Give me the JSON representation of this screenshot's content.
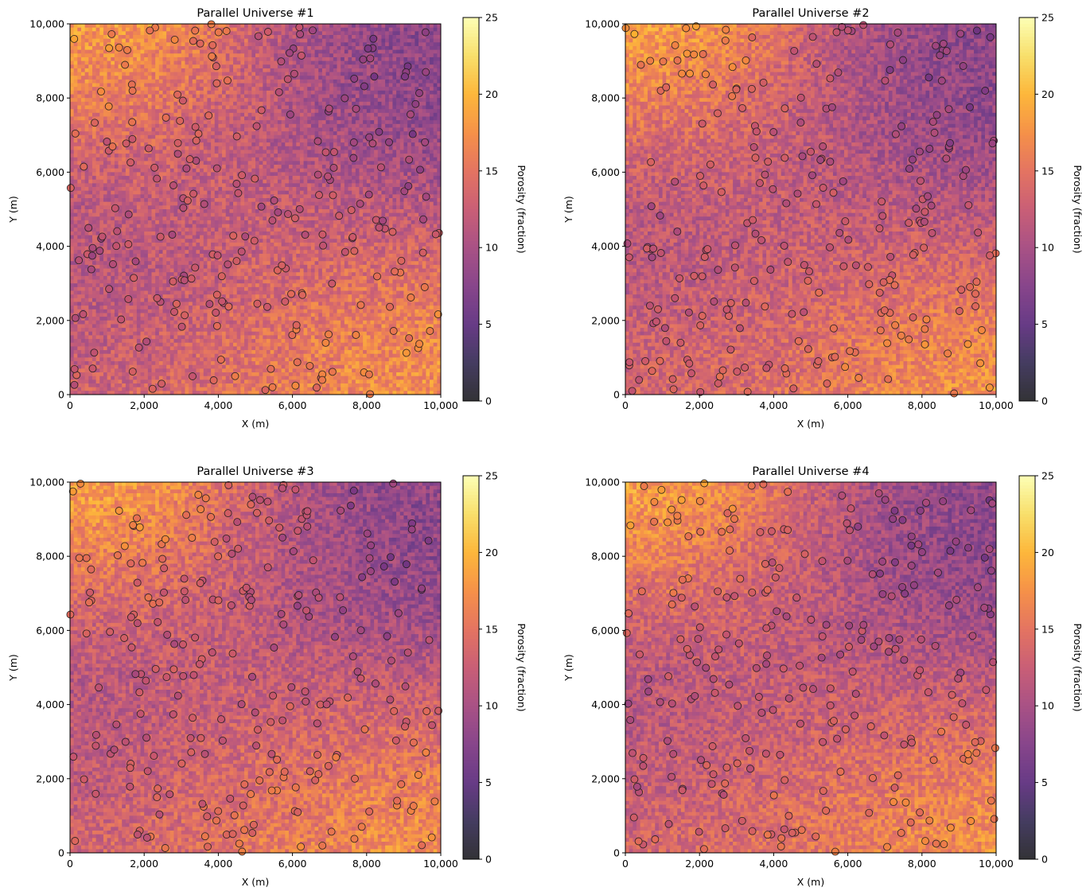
{
  "colorbar": {
    "label": "Porosity (fraction)",
    "min": 0,
    "max": 25,
    "ticks": [
      0,
      5,
      10,
      15,
      20,
      25
    ],
    "colormap": "inferno",
    "alpha": 0.8
  },
  "axes": {
    "xlabel": "X (m)",
    "ylabel": "Y (m)",
    "xlim": [
      0,
      10000
    ],
    "ylim": [
      0,
      10000
    ],
    "xticks": [
      "0",
      "2,000",
      "4,000",
      "6,000",
      "8,000",
      "10,000"
    ],
    "yticks": [
      "0",
      "2,000",
      "4,000",
      "6,000",
      "8,000",
      "10,000"
    ]
  },
  "chart_data": [
    {
      "type": "heatmap",
      "title": "Parallel Universe #1",
      "grid_cells": 100,
      "wells_shown": 260,
      "marker_colormap": "inferno",
      "high_zones": [
        [
          2000,
          9000,
          22
        ],
        [
          8500,
          1000,
          20
        ],
        [
          5500,
          500,
          16
        ],
        [
          7500,
          3000,
          16
        ],
        [
          1000,
          2000,
          16
        ]
      ],
      "low_zones": [
        [
          9000,
          7000,
          5
        ],
        [
          1000,
          3500,
          5
        ],
        [
          8000,
          8500,
          7
        ],
        [
          5000,
          5000,
          10
        ],
        [
          4000,
          6000,
          12
        ]
      ]
    },
    {
      "type": "heatmap",
      "title": "Parallel Universe #2",
      "grid_cells": 100,
      "wells_shown": 260,
      "marker_colormap": "inferno",
      "high_zones": [
        [
          2000,
          9000,
          22
        ],
        [
          8500,
          1000,
          20
        ],
        [
          3000,
          800,
          16
        ],
        [
          7500,
          3000,
          16
        ],
        [
          1000,
          1500,
          16
        ]
      ],
      "low_zones": [
        [
          9000,
          7000,
          5
        ],
        [
          1000,
          3500,
          5
        ],
        [
          8000,
          8500,
          7
        ],
        [
          5000,
          4500,
          10
        ],
        [
          4500,
          6500,
          12
        ]
      ]
    },
    {
      "type": "heatmap",
      "title": "Parallel Universe #3",
      "grid_cells": 100,
      "wells_shown": 260,
      "marker_colormap": "inferno",
      "high_zones": [
        [
          2000,
          9000,
          22
        ],
        [
          8500,
          1000,
          20
        ],
        [
          4000,
          800,
          16
        ],
        [
          7500,
          3000,
          16
        ],
        [
          1500,
          1500,
          16
        ]
      ],
      "low_zones": [
        [
          9000,
          7000,
          5
        ],
        [
          1000,
          3500,
          5
        ],
        [
          8000,
          8500,
          7
        ],
        [
          5500,
          4500,
          10
        ],
        [
          4500,
          6500,
          12
        ]
      ]
    },
    {
      "type": "heatmap",
      "title": "Parallel Universe #4",
      "grid_cells": 100,
      "wells_shown": 260,
      "marker_colormap": "inferno",
      "high_zones": [
        [
          2000,
          9000,
          22
        ],
        [
          8500,
          1000,
          20
        ],
        [
          3500,
          800,
          16
        ],
        [
          7500,
          3000,
          16
        ],
        [
          1000,
          1500,
          16
        ]
      ],
      "low_zones": [
        [
          9000,
          7000,
          5
        ],
        [
          1000,
          3500,
          5
        ],
        [
          8000,
          8500,
          7
        ],
        [
          5500,
          4500,
          10
        ],
        [
          4500,
          6500,
          12
        ]
      ]
    }
  ]
}
